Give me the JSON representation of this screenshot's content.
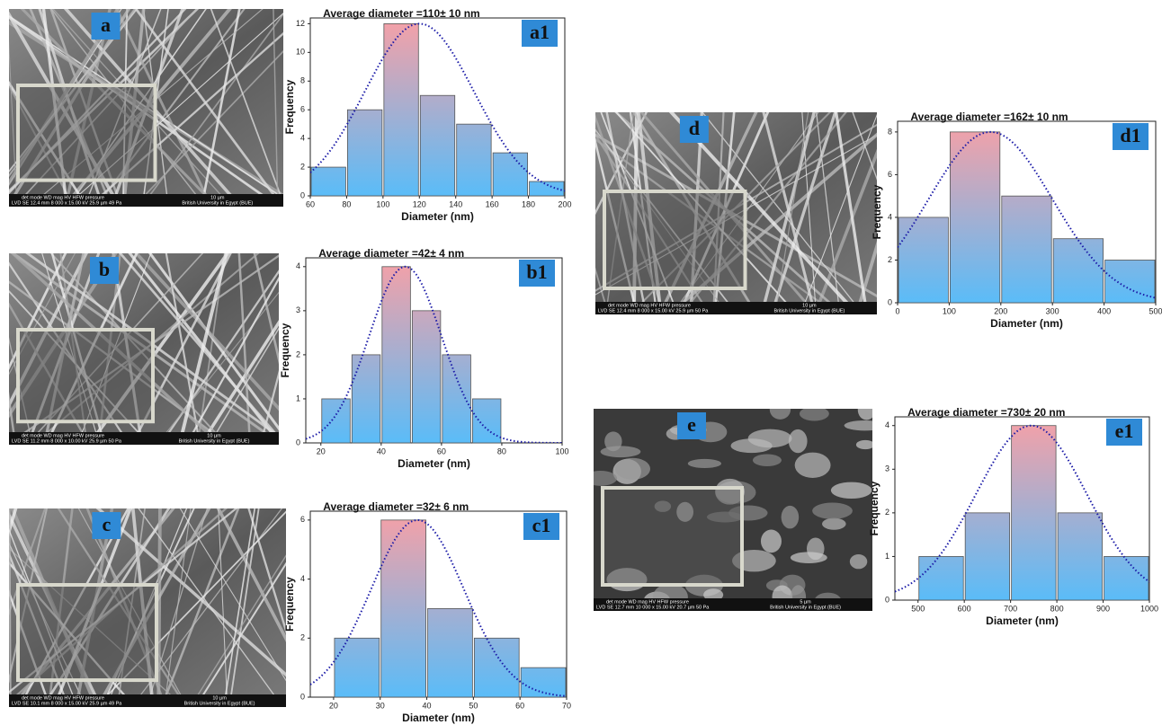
{
  "panels": [
    {
      "label": "a",
      "header": "det mode WD mag HV HFW pressure",
      "values": "LVD SE 12.4 mm 8 000 x 15.00 kV 25.9 µm 49 Pa",
      "scale": "10 µm",
      "org": "British University in Egypt (BUE)"
    },
    {
      "label": "b",
      "header": "det mode WD mag HV HFW pressure",
      "values": "LVD SE 11.2 mm 8 000 x 10.00 kV 25.9 µm 50 Pa",
      "scale": "10 µm",
      "org": "British University in Egypt (BUE)"
    },
    {
      "label": "c",
      "header": "det mode WD mag HV HFW pressure",
      "values": "LVD SE 10.1 mm 8 000 x 15.00 kV 25.9 µm 49 Pa",
      "scale": "10 µm",
      "org": "British University in Egypt (BUE)"
    },
    {
      "label": "d",
      "header": "det mode WD mag HV HFW pressure",
      "values": "LVD SE 12.4 mm 8 000 x 15.00 kV 25.9 µm 50 Pa",
      "scale": "10 µm",
      "org": "British University in Egypt (BUE)"
    },
    {
      "label": "e",
      "header": "det mode WD mag HV HFW pressure",
      "values": "LVD SE 12.7 mm 10 000 x 15.00 kV 20.7 µm 50 Pa",
      "scale": "5 µm",
      "org": "British University in Egypt (BUE)"
    }
  ],
  "chart_data": [
    {
      "type": "histogram",
      "title": "Average diameter =110± 10 nm",
      "label": "a1",
      "x_label": "Diameter (nm)",
      "y_label": "Frequency",
      "bins": [
        60,
        80,
        100,
        120,
        140,
        160,
        180,
        200
      ],
      "values": [
        2,
        6,
        12,
        7,
        5,
        3,
        1
      ],
      "xlim": [
        60,
        200
      ],
      "ylim": [
        0,
        12.4
      ],
      "xticks": [
        60,
        80,
        100,
        120,
        140,
        160,
        180,
        200
      ],
      "yticks": [
        0,
        2,
        4,
        6,
        8,
        10,
        12
      ],
      "colors": [
        "#f7a0a6",
        "#5abcf8"
      ],
      "fit": {
        "center": 120,
        "sd": 30,
        "peak": 12,
        "color": "#1c1ca8"
      }
    },
    {
      "type": "histogram",
      "title": "Average diameter =42± 4 nm",
      "label": "b1",
      "x_label": "Diameter (nm)",
      "y_label": "Frequency",
      "bins": [
        20,
        30,
        40,
        50,
        60,
        70,
        80
      ],
      "values": [
        1,
        2,
        4,
        3,
        2,
        1
      ],
      "xlim": [
        15,
        100
      ],
      "ylim": [
        0,
        4.2
      ],
      "xticks": [
        20,
        40,
        60,
        80,
        100
      ],
      "yticks": [
        0,
        1,
        2,
        3,
        4
      ],
      "colors": [
        "#f7a0a6",
        "#5abcf8"
      ],
      "fit": {
        "center": 48,
        "sd": 12,
        "peak": 4,
        "color": "#1c1ca8"
      }
    },
    {
      "type": "histogram",
      "title": "Average diameter =32± 6 nm",
      "label": "c1",
      "x_label": "Diameter (nm)",
      "y_label": "Frequency",
      "bins": [
        20,
        30,
        40,
        50,
        60,
        70
      ],
      "values": [
        2,
        6,
        3,
        2,
        1
      ],
      "xlim": [
        15,
        70
      ],
      "ylim": [
        0,
        6.3
      ],
      "xticks": [
        20,
        30,
        40,
        50,
        60,
        70
      ],
      "yticks": [
        0,
        2,
        4,
        6
      ],
      "colors": [
        "#f7a0a6",
        "#5abcf8"
      ],
      "fit": {
        "center": 38,
        "sd": 10,
        "peak": 6,
        "color": "#1c1ca8"
      }
    },
    {
      "type": "histogram",
      "title": "Average diameter =162± 10 nm",
      "label": "d1",
      "x_label": "Diameter (nm)",
      "y_label": "Frequency",
      "bins": [
        0,
        100,
        200,
        300,
        400,
        500
      ],
      "values": [
        4,
        8,
        5,
        3,
        2
      ],
      "xlim": [
        0,
        500
      ],
      "ylim": [
        0,
        8.5
      ],
      "xticks": [
        0,
        100,
        200,
        300,
        400,
        500
      ],
      "yticks": [
        0,
        2,
        4,
        6,
        8
      ],
      "colors": [
        "#f7a0a6",
        "#5abcf8"
      ],
      "fit": {
        "center": 180,
        "sd": 120,
        "peak": 8,
        "color": "#1c1ca8"
      }
    },
    {
      "type": "histogram",
      "title": "Average diameter =730± 20 nm",
      "label": "e1",
      "x_label": "Diameter (nm)",
      "y_label": "Frequency",
      "bins": [
        500,
        600,
        700,
        800,
        900,
        1000
      ],
      "values": [
        1,
        2,
        4,
        2,
        1
      ],
      "xlim": [
        450,
        1000
      ],
      "ylim": [
        0,
        4.2
      ],
      "xticks": [
        500,
        600,
        700,
        800,
        900,
        1000
      ],
      "yticks": [
        0,
        1,
        2,
        3,
        4
      ],
      "colors": [
        "#f7a0a6",
        "#5abcf8"
      ],
      "fit": {
        "center": 745,
        "sd": 120,
        "peak": 4,
        "color": "#1c1ca8"
      }
    }
  ]
}
